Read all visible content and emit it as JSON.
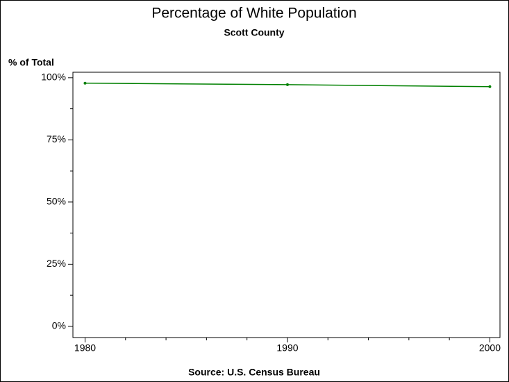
{
  "chart_data": {
    "type": "line",
    "title": "Percentage of White Population",
    "subtitle": "Scott County",
    "y_label": "% of Total",
    "source": "Source: U.S. Census Bureau",
    "x": [
      1980,
      1990,
      2000
    ],
    "series": [
      {
        "name": "White",
        "color": "#008000",
        "values": [
          97.8,
          97.2,
          96.4
        ]
      }
    ],
    "xlim": [
      1979.4,
      2000.5
    ],
    "xticks": [
      1980,
      1990,
      2000
    ],
    "xminorticks": [
      1982,
      1984,
      1986,
      1988,
      1992,
      1994,
      1996,
      1998
    ],
    "ylim": [
      -4.5,
      102.2
    ],
    "yticks": [
      {
        "value": 0,
        "label": "0%"
      },
      {
        "value": 25,
        "label": "25%"
      },
      {
        "value": 50,
        "label": "50%"
      },
      {
        "value": 75,
        "label": "75%"
      },
      {
        "value": 100,
        "label": "100%"
      }
    ],
    "yminorticks": [
      12.5,
      37.5,
      62.5,
      87.5
    ],
    "grid": false
  }
}
